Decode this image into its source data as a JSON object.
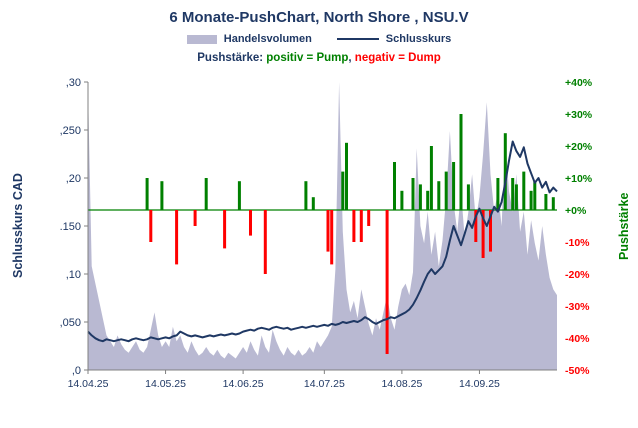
{
  "chart_data": {
    "type": "combo (area volume + bar push + line close)",
    "title": "6 Monate-PushChart, North Shore , NSU.V",
    "subtitle": {
      "prefix": "Pushstärke: ",
      "positive": "positiv = Pump",
      "separator": ", ",
      "negative": "negativ = Dump"
    },
    "legend": {
      "volume": "Handelsvolumen",
      "close": "Schlusskurs"
    },
    "colors": {
      "title_text": "#1f3864",
      "volume_fill": "#b9b9d2",
      "close_line": "#1f3864",
      "pump_green": "#008000",
      "dump_red": "#ff0000",
      "axis_line": "#808080"
    },
    "x_axis": {
      "unit": "trading days, daily data over 6 months",
      "n_points": 128,
      "tick_labels": [
        "14.04.25",
        "14.05.25",
        "14.06.25",
        "14.07.25",
        "14.08.25",
        "14.09.25"
      ],
      "tick_day_indices": [
        0,
        21,
        42,
        64,
        85,
        106
      ]
    },
    "left_axis": {
      "title": "Schlusskurs CAD",
      "tick_labels": [
        ",30",
        ",250",
        ",20",
        ".150",
        ",10",
        ",050",
        ",0"
      ],
      "tick_values": [
        0.3,
        0.25,
        0.2,
        0.15,
        0.1,
        0.05,
        0
      ],
      "range": [
        0,
        0.3
      ]
    },
    "right_axis": {
      "title": "Pushstärke",
      "tick_labels": [
        "+40%",
        "+30%",
        "+20%",
        "+10%",
        "+0%",
        "-10%",
        "-20%",
        "-30%",
        "-40%",
        "-50%"
      ],
      "tick_values": [
        40,
        30,
        20,
        10,
        0,
        -10,
        -20,
        -30,
        -40,
        -50
      ],
      "range": [
        -50,
        40
      ]
    },
    "series": [
      {
        "name": "Handelsvolumen",
        "type": "area",
        "color": "#b9b9d2",
        "axis": "none (values estimated as % of plot height, no volume scale shown)",
        "values": [
          98,
          36,
          30,
          24,
          18,
          12,
          10,
          8,
          12,
          9,
          7,
          6,
          8,
          10,
          7,
          6,
          8,
          14,
          20,
          12,
          8,
          10,
          8,
          15,
          10,
          12,
          8,
          6,
          10,
          7,
          5,
          6,
          8,
          6,
          5,
          7,
          5,
          4,
          6,
          5,
          4,
          6,
          8,
          6,
          10,
          7,
          5,
          12,
          8,
          6,
          14,
          10,
          7,
          5,
          8,
          6,
          5,
          7,
          5,
          6,
          8,
          6,
          10,
          8,
          10,
          12,
          15,
          35,
          100,
          48,
          28,
          20,
          24,
          18,
          28,
          22,
          16,
          12,
          18,
          14,
          20,
          26,
          18,
          14,
          22,
          28,
          30,
          26,
          34,
          77,
          50,
          44,
          55,
          40,
          48,
          36,
          45,
          60,
          83,
          58,
          48,
          62,
          46,
          55,
          68,
          52,
          60,
          75,
          93,
          68,
          55,
          62,
          50,
          80,
          62,
          55,
          68,
          48,
          55,
          40,
          52,
          44,
          38,
          50,
          40,
          32,
          28,
          26
        ]
      },
      {
        "name": "Pushstärke",
        "type": "bar",
        "unit": "%",
        "axis": "right",
        "color_positive": "#008000",
        "color_negative": "#ff0000",
        "values": [
          0,
          0,
          0,
          0,
          0,
          0,
          0,
          0,
          0,
          0,
          0,
          0,
          0,
          0,
          0,
          0,
          10,
          -10,
          0,
          0,
          9,
          0,
          0,
          0,
          -17,
          0,
          0,
          0,
          0,
          -5,
          0,
          0,
          10,
          0,
          0,
          0,
          0,
          -12,
          0,
          0,
          0,
          9,
          0,
          0,
          -8,
          0,
          0,
          0,
          -20,
          0,
          0,
          0,
          0,
          0,
          0,
          0,
          0,
          0,
          0,
          9,
          0,
          4,
          0,
          0,
          0,
          -13,
          -17,
          0,
          0,
          12,
          21,
          0,
          -10,
          0,
          -10,
          0,
          -5,
          0,
          0,
          0,
          0,
          -45,
          0,
          15,
          0,
          6,
          0,
          0,
          10,
          0,
          8,
          0,
          6,
          20,
          0,
          9,
          0,
          12,
          0,
          15,
          0,
          30,
          0,
          8,
          0,
          -10,
          0,
          -15,
          0,
          -13,
          0,
          10,
          0,
          24,
          0,
          10,
          8,
          0,
          12,
          0,
          6,
          9,
          0,
          0,
          5,
          0,
          4,
          0
        ]
      },
      {
        "name": "Schlusskurs",
        "type": "line",
        "unit": "CAD",
        "axis": "left",
        "color": "#1f3864",
        "values": [
          0.04,
          0.036,
          0.033,
          0.031,
          0.03,
          0.032,
          0.031,
          0.03,
          0.031,
          0.032,
          0.031,
          0.03,
          0.032,
          0.033,
          0.032,
          0.031,
          0.032,
          0.034,
          0.033,
          0.032,
          0.033,
          0.034,
          0.033,
          0.035,
          0.036,
          0.04,
          0.038,
          0.036,
          0.035,
          0.036,
          0.035,
          0.034,
          0.035,
          0.036,
          0.035,
          0.036,
          0.037,
          0.036,
          0.037,
          0.038,
          0.037,
          0.038,
          0.04,
          0.041,
          0.042,
          0.041,
          0.043,
          0.044,
          0.043,
          0.042,
          0.044,
          0.045,
          0.044,
          0.043,
          0.044,
          0.042,
          0.043,
          0.044,
          0.045,
          0.044,
          0.045,
          0.046,
          0.045,
          0.046,
          0.047,
          0.046,
          0.048,
          0.047,
          0.048,
          0.05,
          0.049,
          0.05,
          0.051,
          0.05,
          0.052,
          0.055,
          0.053,
          0.05,
          0.048,
          0.05,
          0.052,
          0.053,
          0.055,
          0.054,
          0.056,
          0.058,
          0.06,
          0.063,
          0.068,
          0.075,
          0.083,
          0.092,
          0.1,
          0.105,
          0.1,
          0.104,
          0.108,
          0.118,
          0.135,
          0.15,
          0.14,
          0.13,
          0.142,
          0.155,
          0.148,
          0.16,
          0.168,
          0.158,
          0.15,
          0.16,
          0.17,
          0.165,
          0.175,
          0.195,
          0.218,
          0.238,
          0.228,
          0.222,
          0.232,
          0.215,
          0.205,
          0.195,
          0.2,
          0.19,
          0.196,
          0.185,
          0.19,
          0.186
        ]
      }
    ]
  }
}
